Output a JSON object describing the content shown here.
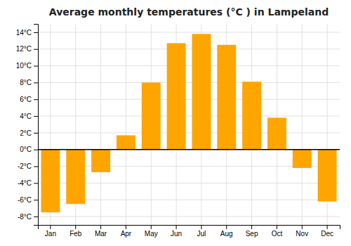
{
  "chart_data": {
    "type": "bar",
    "title": "Average monthly temperatures (°C ) in Lampeland",
    "categories": [
      "Jan",
      "Feb",
      "Mar",
      "Apr",
      "May",
      "Jun",
      "Jul",
      "Aug",
      "Sep",
      "Oct",
      "Nov",
      "Dec"
    ],
    "values": [
      -7.5,
      -6.5,
      -2.7,
      1.7,
      8.0,
      12.7,
      13.8,
      12.5,
      8.1,
      3.8,
      -2.2,
      -6.2
    ],
    "color": "#FFA500",
    "ylim": [
      -9,
      15
    ],
    "yticks": [
      {
        "value": -8,
        "label": "-8°C"
      },
      {
        "value": -6,
        "label": "-6°C"
      },
      {
        "value": -4,
        "label": "-4°C"
      },
      {
        "value": -2,
        "label": "-2°C"
      },
      {
        "value": 0,
        "label": "0°C"
      },
      {
        "value": 2,
        "label": "2°C"
      },
      {
        "value": 4,
        "label": "4°C"
      },
      {
        "value": 6,
        "label": "6°C"
      },
      {
        "value": 8,
        "label": "8°C"
      },
      {
        "value": 10,
        "label": "10°C"
      },
      {
        "value": 12,
        "label": "12°C"
      },
      {
        "value": 14,
        "label": "14°C"
      }
    ],
    "grid": true
  }
}
